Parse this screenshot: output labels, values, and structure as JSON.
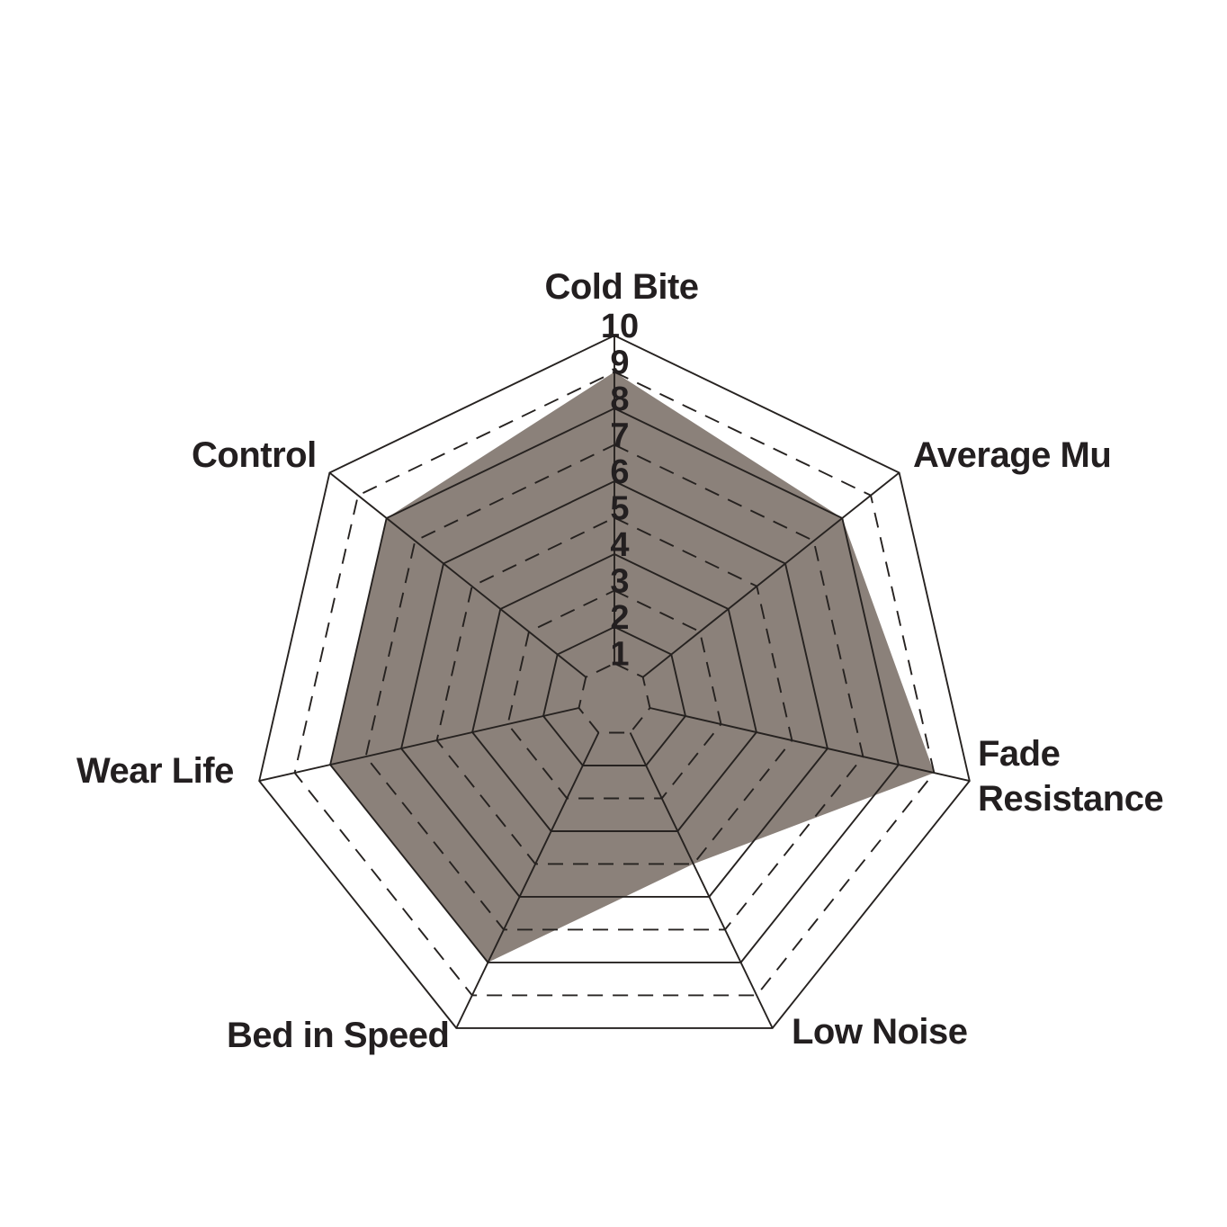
{
  "chart_data": {
    "type": "radar",
    "title": "",
    "categories": [
      "Cold Bite",
      "Average Mu",
      "Fade Resistance",
      "Low Noise",
      "Bed in Speed",
      "Wear Life",
      "Control"
    ],
    "values": [
      9,
      8,
      9,
      5,
      8,
      8,
      8
    ],
    "scale": {
      "min": 1,
      "max": 10,
      "tick_labels": [
        "1",
        "2",
        "3",
        "4",
        "5",
        "6",
        "7",
        "8",
        "9",
        "10"
      ]
    },
    "grid": {
      "solid_rings": [
        2,
        4,
        6,
        8,
        10
      ],
      "dashed_rings": [
        1,
        3,
        5,
        7,
        9
      ],
      "spokes_visible": true,
      "legend": "none"
    },
    "colors": {
      "fill": "#8b817a",
      "line": "#262220",
      "text": "#231f20",
      "background": "#ffffff"
    }
  }
}
